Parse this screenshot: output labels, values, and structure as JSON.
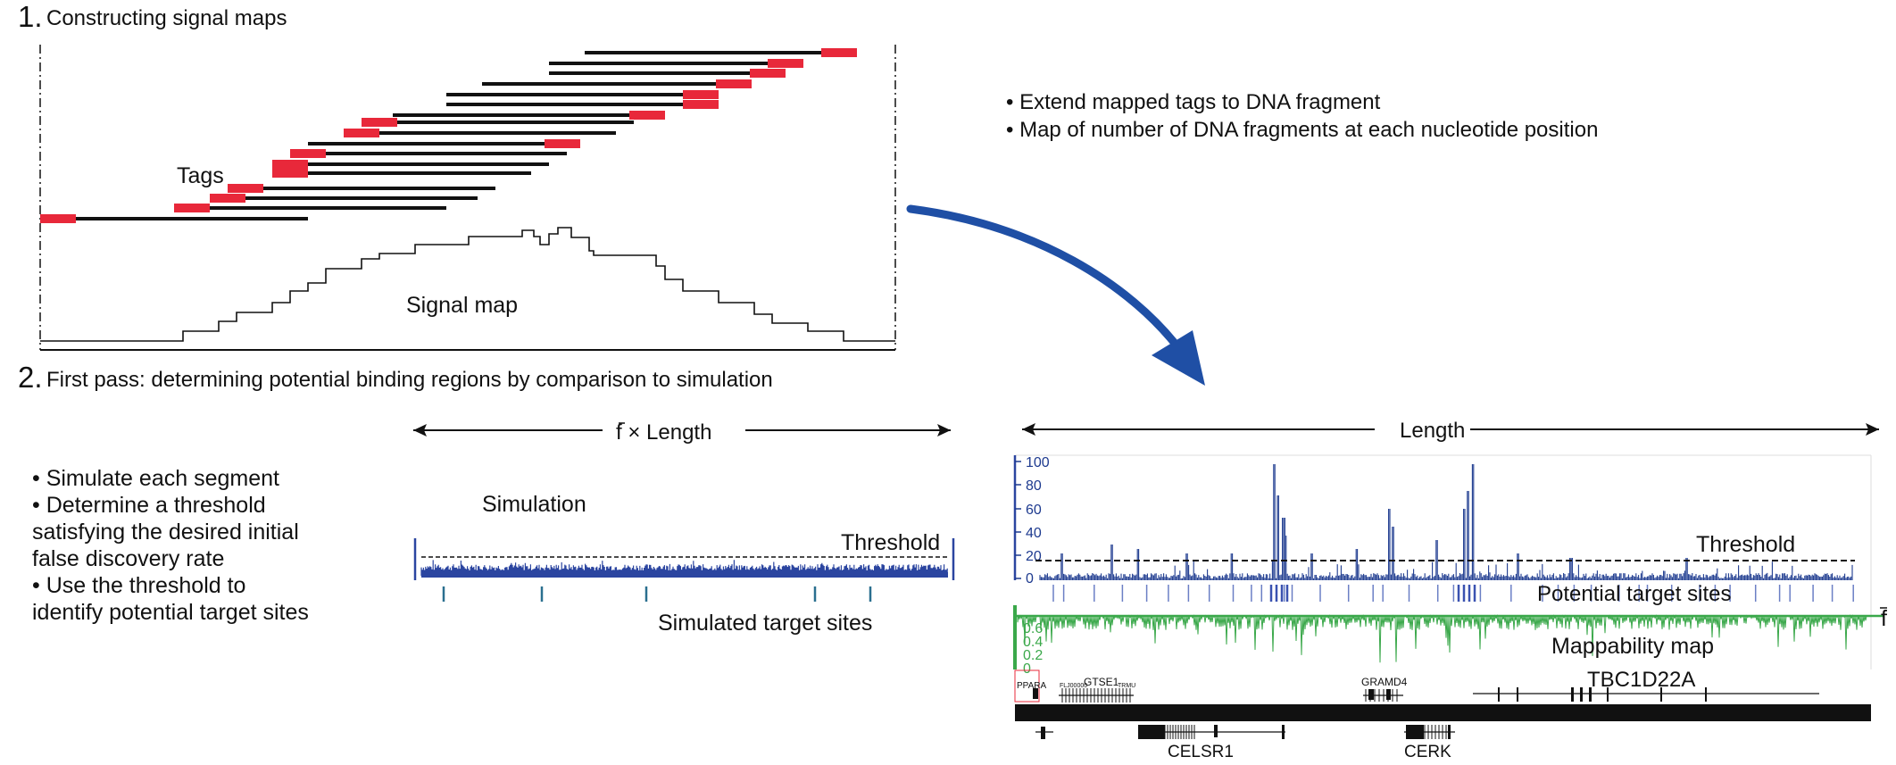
{
  "colors": {
    "tag": "#e8283a",
    "fragment": "#111111",
    "arrow": "#1f4fa5",
    "signal": "#1d3a8f",
    "mappability": "#3aa84a",
    "simulation": "#2b45a0"
  },
  "section1": {
    "number": "1.",
    "title": "Constructing signal maps",
    "tags_label": "Tags",
    "signal_map_label": "Signal map"
  },
  "bullets_top": [
    "• Extend mapped tags to DNA fragment",
    "• Map of number of DNA fragments at each nucleotide position"
  ],
  "section2": {
    "number": "2.",
    "title": "First pass: determining potential binding regions by comparison to simulation"
  },
  "bullets_left": [
    "• Simulate each segment",
    "• Determine a threshold",
    "satisfying the desired initial",
    "false discovery rate",
    "• Use the threshold to",
    "identify potential target sites"
  ],
  "simulation_panel": {
    "span_label": "f × Length",
    "title": "Simulation",
    "threshold": "Threshold",
    "sites_label": "Simulated target sites"
  },
  "genome_panel": {
    "span_label": "Length",
    "y_ticks": [
      "100",
      "80",
      "60",
      "40",
      "20",
      "0"
    ],
    "threshold": "Threshold",
    "sites_label": "Potential target sites",
    "f_label": "f",
    "map_ticks": [
      "0.6",
      "0.4",
      "0.2",
      "0"
    ],
    "map_label": "Mappability map",
    "gene_top": [
      "PPARA",
      "GTSE1",
      "GRAMD4",
      "TBC1D22A"
    ],
    "gene_small": [
      "FLJ00000",
      "TRMU"
    ],
    "gene_bottom": [
      "CELSR1",
      "CERK"
    ]
  }
}
